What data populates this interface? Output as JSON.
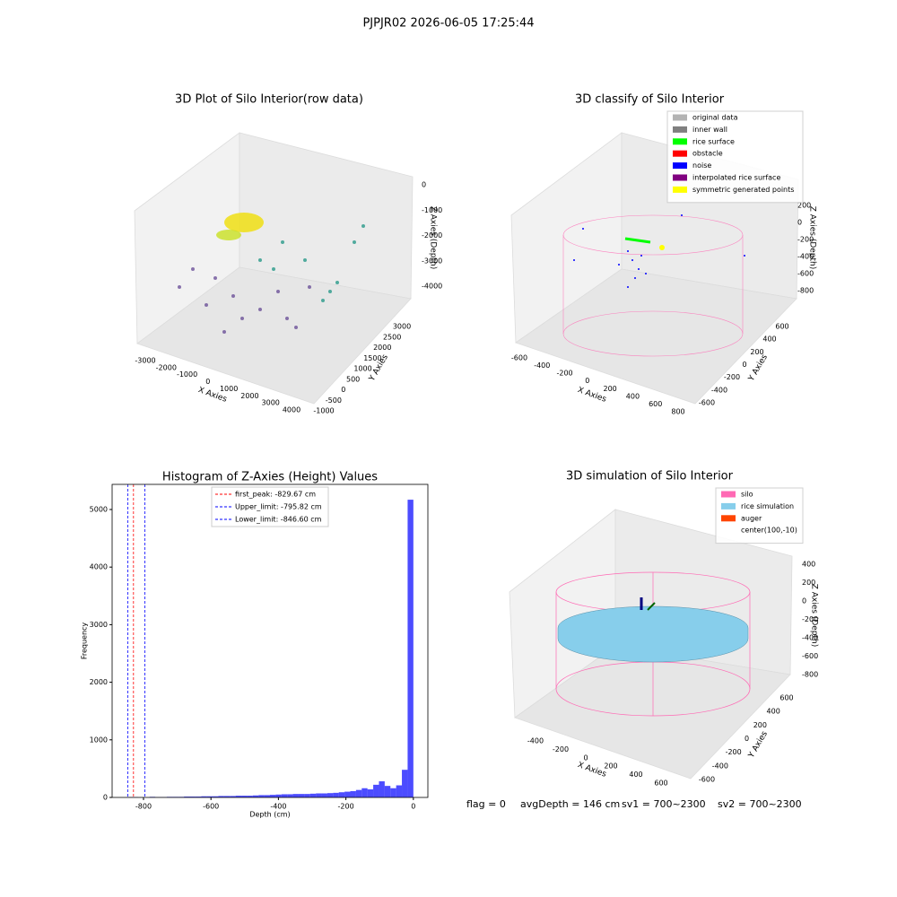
{
  "suptitle": "PJPJR02 2026-06-05 17:25:44",
  "footer": [
    "flag = 0",
    "avgDepth = 146 cm",
    "sv1 = 700~2300",
    "sv2 = 700~2300"
  ],
  "chart_data": [
    {
      "type": "scatter3d",
      "title": "3D Plot of Silo Interior(row data)",
      "xlabel": "X Axies",
      "ylabel": "Y Axies",
      "zlabel": "Z Axies (Depth)",
      "xticks": [
        -3000,
        -2000,
        -1000,
        0,
        1000,
        2000,
        3000,
        4000
      ],
      "yticks": [
        -1000,
        -500,
        0,
        500,
        1000,
        1500,
        2000,
        2500,
        3000
      ],
      "zticks": [
        0,
        -1000,
        -2000,
        -3000,
        -4000
      ]
    },
    {
      "type": "scatter3d",
      "title": "3D classify of Silo Interior",
      "xlabel": "X Axies",
      "ylabel": "Y Axies",
      "zlabel": "Z Axies (Depth)",
      "xticks": [
        -600,
        -400,
        -200,
        0,
        200,
        400,
        600,
        800
      ],
      "yticks": [
        -600,
        -400,
        -200,
        0,
        200,
        400,
        600
      ],
      "zticks": [
        200,
        0,
        -200,
        -400,
        -600,
        -800
      ],
      "legend": [
        {
          "name": "original data",
          "color": "#b3b3b3"
        },
        {
          "name": "inner wall",
          "color": "#808080"
        },
        {
          "name": "rice surface",
          "color": "#00ff00"
        },
        {
          "name": "obstacle",
          "color": "#ff0000"
        },
        {
          "name": "noise",
          "color": "#0000ff"
        },
        {
          "name": "interpolated rice surface",
          "color": "#800080"
        },
        {
          "name": "symmetric generated points",
          "color": "#ffff00"
        }
      ]
    },
    {
      "type": "histogram",
      "title": "Histogram of Z-Axies (Height) Values",
      "xlabel": "Depth (cm)",
      "ylabel": "Frequency",
      "color": "#0000ff",
      "bins": [
        -850,
        -833,
        -816,
        -799,
        -782,
        -765,
        -748,
        -731,
        -714,
        -697,
        -680,
        -663,
        -646,
        -629,
        -612,
        -595,
        -578,
        -561,
        -544,
        -527,
        -510,
        -493,
        -476,
        -459,
        -442,
        -425,
        -408,
        -391,
        -374,
        -357,
        -340,
        -323,
        -306,
        -289,
        -272,
        -255,
        -238,
        -221,
        -204,
        -187,
        -170,
        -153,
        -136,
        -119,
        -102,
        -85,
        -68,
        -51,
        -34,
        -17,
        0
      ],
      "values": [
        5,
        5,
        0,
        0,
        10,
        5,
        5,
        10,
        10,
        10,
        15,
        15,
        15,
        20,
        20,
        20,
        25,
        25,
        25,
        30,
        30,
        30,
        35,
        40,
        40,
        45,
        50,
        55,
        55,
        60,
        60,
        60,
        65,
        70,
        70,
        75,
        80,
        90,
        100,
        110,
        130,
        160,
        140,
        220,
        280,
        200,
        160,
        210,
        480,
        5170
      ],
      "xlim": [
        -893,
        43
      ],
      "ylim": [
        0,
        5436
      ],
      "xticks": [
        -800,
        -600,
        -400,
        -200,
        0
      ],
      "yticks": [
        0,
        1000,
        2000,
        3000,
        4000,
        5000
      ],
      "vlines": [
        {
          "value": -829.67,
          "color": "#ff0000",
          "label": "first_peak: -829.67 cm"
        },
        {
          "value": -795.82,
          "color": "#0000ff",
          "label": "Upper_limit: -795.82 cm"
        },
        {
          "value": -846.6,
          "color": "#0000ff",
          "label": "Lower_limit: -846.60 cm"
        }
      ]
    },
    {
      "type": "surface3d",
      "title": "3D simulation of Silo Interior",
      "xlabel": "X Axies",
      "ylabel": "Y Axies",
      "zlabel": "Z Axies (Depth)",
      "xticks": [
        -400,
        -200,
        0,
        200,
        400,
        600
      ],
      "yticks": [
        -600,
        -400,
        -200,
        0,
        200,
        400,
        600
      ],
      "zticks": [
        400,
        200,
        0,
        -200,
        -400,
        -600,
        -800
      ],
      "legend": [
        {
          "name": "silo",
          "color": "#ff69b4"
        },
        {
          "name": "rice simulation",
          "color": "#87ceeb"
        },
        {
          "name": "auger",
          "color": "#ff4500"
        },
        {
          "name": "center(100,-10)"
        }
      ]
    }
  ]
}
